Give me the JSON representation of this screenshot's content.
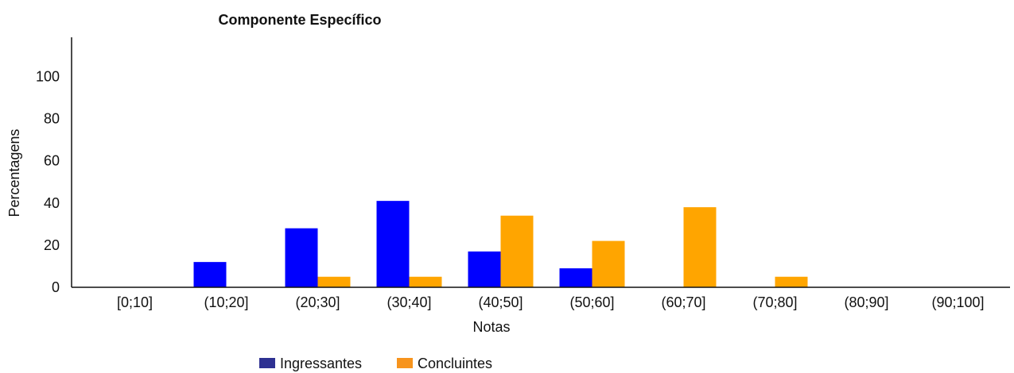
{
  "chart_data": {
    "type": "bar",
    "title": "Componente Específico",
    "xlabel": "Notas",
    "ylabel": "Percentagens",
    "categories": [
      "[0;10]",
      "(10;20]",
      "(20;30]",
      "(30;40]",
      "(40;50]",
      "(50;60]",
      "(60;70]",
      "(70;80]",
      "(80;90]",
      "(90;100]"
    ],
    "series": [
      {
        "name": "Ingressantes",
        "color": "#0000ff",
        "legend_color": "#2e3192",
        "values": [
          0,
          12,
          28,
          41,
          17,
          9,
          0,
          0,
          0,
          0
        ]
      },
      {
        "name": "Concluintes",
        "color": "#ffa500",
        "legend_color": "#f7941d",
        "values": [
          0,
          0,
          5,
          5,
          34,
          22,
          38,
          5,
          0,
          0
        ]
      }
    ],
    "ylim": [
      0,
      118
    ],
    "yticks": [
      0,
      20,
      40,
      60,
      80,
      100
    ],
    "grid": false,
    "legend_position": "bottom"
  }
}
